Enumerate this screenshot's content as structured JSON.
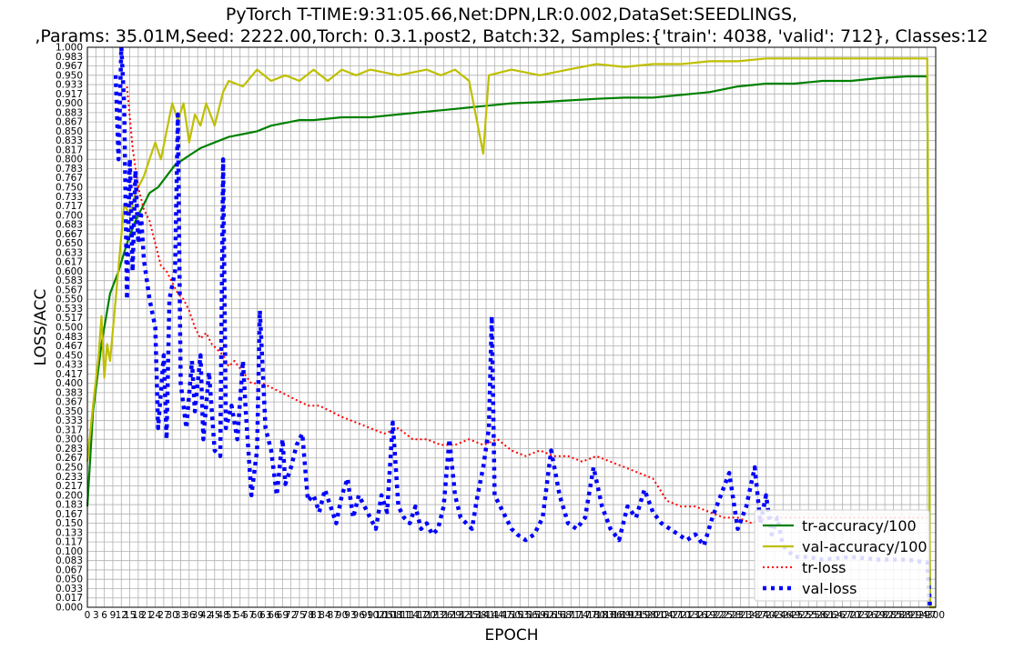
{
  "chart_data": {
    "type": "line",
    "title_line1": "PyTorch T-TIME:9:31:05.66,Net:DPN,LR:0.002,DataSet:SEEDLINGS,",
    "title_line2": ",Params: 35.01M,Seed: 2222.00,Torch: 0.3.1.post2, Batch:32, Samples:{'train': 4038, 'valid': 712}, Classes:12",
    "xlabel": "EPOCH",
    "ylabel": "LOSS/ACC",
    "xlim": [
      0,
      300
    ],
    "ylim": [
      0,
      1
    ],
    "y_tick_step": 0.01667,
    "grid": true,
    "legend_position": "lower-right",
    "series": [
      {
        "name": "tr-accuracy/100",
        "color": "#008000",
        "style": "solid",
        "points": [
          [
            0,
            0.18
          ],
          [
            2,
            0.35
          ],
          [
            5,
            0.47
          ],
          [
            8,
            0.56
          ],
          [
            11,
            0.6
          ],
          [
            14,
            0.65
          ],
          [
            17,
            0.69
          ],
          [
            20,
            0.72
          ],
          [
            22,
            0.74
          ],
          [
            25,
            0.75
          ],
          [
            28,
            0.77
          ],
          [
            31,
            0.79
          ],
          [
            34,
            0.8
          ],
          [
            37,
            0.81
          ],
          [
            40,
            0.82
          ],
          [
            45,
            0.83
          ],
          [
            50,
            0.84
          ],
          [
            55,
            0.845
          ],
          [
            60,
            0.85
          ],
          [
            65,
            0.86
          ],
          [
            70,
            0.865
          ],
          [
            75,
            0.87
          ],
          [
            80,
            0.87
          ],
          [
            90,
            0.875
          ],
          [
            100,
            0.875
          ],
          [
            110,
            0.88
          ],
          [
            120,
            0.885
          ],
          [
            130,
            0.89
          ],
          [
            140,
            0.895
          ],
          [
            150,
            0.9
          ],
          [
            160,
            0.902
          ],
          [
            170,
            0.905
          ],
          [
            180,
            0.908
          ],
          [
            190,
            0.91
          ],
          [
            200,
            0.91
          ],
          [
            210,
            0.915
          ],
          [
            220,
            0.92
          ],
          [
            230,
            0.93
          ],
          [
            240,
            0.935
          ],
          [
            250,
            0.935
          ],
          [
            260,
            0.94
          ],
          [
            270,
            0.94
          ],
          [
            280,
            0.945
          ],
          [
            290,
            0.948
          ],
          [
            297,
            0.948
          ],
          [
            298,
            0.0
          ],
          [
            300,
            0.0
          ]
        ]
      },
      {
        "name": "val-accuracy/100",
        "color": "#bfbf00",
        "style": "solid",
        "points": [
          [
            0,
            0.26
          ],
          [
            2,
            0.36
          ],
          [
            4,
            0.45
          ],
          [
            5,
            0.52
          ],
          [
            6,
            0.41
          ],
          [
            7,
            0.47
          ],
          [
            8,
            0.44
          ],
          [
            10,
            0.55
          ],
          [
            13,
            0.72
          ],
          [
            15,
            0.7
          ],
          [
            17,
            0.74
          ],
          [
            20,
            0.77
          ],
          [
            22,
            0.8
          ],
          [
            24,
            0.83
          ],
          [
            26,
            0.8
          ],
          [
            28,
            0.85
          ],
          [
            30,
            0.9
          ],
          [
            32,
            0.87
          ],
          [
            34,
            0.9
          ],
          [
            36,
            0.83
          ],
          [
            38,
            0.88
          ],
          [
            40,
            0.86
          ],
          [
            42,
            0.9
          ],
          [
            45,
            0.86
          ],
          [
            48,
            0.92
          ],
          [
            50,
            0.94
          ],
          [
            55,
            0.93
          ],
          [
            60,
            0.96
          ],
          [
            65,
            0.94
          ],
          [
            70,
            0.95
          ],
          [
            75,
            0.94
          ],
          [
            80,
            0.96
          ],
          [
            85,
            0.94
          ],
          [
            90,
            0.96
          ],
          [
            95,
            0.95
          ],
          [
            100,
            0.96
          ],
          [
            110,
            0.95
          ],
          [
            120,
            0.96
          ],
          [
            125,
            0.95
          ],
          [
            130,
            0.96
          ],
          [
            135,
            0.94
          ],
          [
            140,
            0.81
          ],
          [
            142,
            0.95
          ],
          [
            150,
            0.96
          ],
          [
            160,
            0.95
          ],
          [
            170,
            0.96
          ],
          [
            180,
            0.97
          ],
          [
            190,
            0.965
          ],
          [
            200,
            0.97
          ],
          [
            210,
            0.97
          ],
          [
            220,
            0.975
          ],
          [
            230,
            0.975
          ],
          [
            240,
            0.98
          ],
          [
            250,
            0.98
          ],
          [
            260,
            0.98
          ],
          [
            270,
            0.98
          ],
          [
            280,
            0.98
          ],
          [
            290,
            0.98
          ],
          [
            297,
            0.98
          ],
          [
            298,
            0.0
          ],
          [
            300,
            0.0
          ]
        ]
      },
      {
        "name": "tr-loss",
        "color": "#ff0000",
        "style": "dotted",
        "points": [
          [
            14,
            0.93
          ],
          [
            16,
            0.82
          ],
          [
            18,
            0.75
          ],
          [
            20,
            0.71
          ],
          [
            22,
            0.69
          ],
          [
            24,
            0.65
          ],
          [
            26,
            0.61
          ],
          [
            28,
            0.6
          ],
          [
            30,
            0.58
          ],
          [
            32,
            0.56
          ],
          [
            34,
            0.55
          ],
          [
            36,
            0.53
          ],
          [
            38,
            0.5
          ],
          [
            40,
            0.48
          ],
          [
            42,
            0.49
          ],
          [
            44,
            0.47
          ],
          [
            46,
            0.46
          ],
          [
            48,
            0.45
          ],
          [
            50,
            0.43
          ],
          [
            52,
            0.44
          ],
          [
            55,
            0.42
          ],
          [
            58,
            0.4
          ],
          [
            62,
            0.4
          ],
          [
            66,
            0.39
          ],
          [
            70,
            0.38
          ],
          [
            74,
            0.37
          ],
          [
            78,
            0.36
          ],
          [
            82,
            0.36
          ],
          [
            86,
            0.35
          ],
          [
            90,
            0.34
          ],
          [
            95,
            0.33
          ],
          [
            100,
            0.32
          ],
          [
            105,
            0.31
          ],
          [
            110,
            0.32
          ],
          [
            115,
            0.3
          ],
          [
            120,
            0.3
          ],
          [
            125,
            0.29
          ],
          [
            130,
            0.29
          ],
          [
            135,
            0.3
          ],
          [
            140,
            0.29
          ],
          [
            145,
            0.3
          ],
          [
            150,
            0.28
          ],
          [
            155,
            0.27
          ],
          [
            160,
            0.28
          ],
          [
            165,
            0.27
          ],
          [
            170,
            0.27
          ],
          [
            175,
            0.26
          ],
          [
            180,
            0.27
          ],
          [
            185,
            0.26
          ],
          [
            190,
            0.25
          ],
          [
            195,
            0.24
          ],
          [
            200,
            0.23
          ],
          [
            205,
            0.19
          ],
          [
            210,
            0.18
          ],
          [
            215,
            0.18
          ],
          [
            220,
            0.17
          ],
          [
            225,
            0.16
          ],
          [
            230,
            0.16
          ],
          [
            235,
            0.15
          ],
          [
            240,
            0.16
          ],
          [
            250,
            0.16
          ],
          [
            260,
            0.16
          ],
          [
            270,
            0.16
          ],
          [
            280,
            0.16
          ],
          [
            290,
            0.16
          ],
          [
            297,
            0.16
          ]
        ]
      },
      {
        "name": "val-loss",
        "color": "#0000ff",
        "style": "dashed",
        "points": [
          [
            10,
            0.95
          ],
          [
            11,
            0.8
          ],
          [
            12,
            1.0
          ],
          [
            13,
            0.9
          ],
          [
            14,
            0.55
          ],
          [
            15,
            0.8
          ],
          [
            16,
            0.6
          ],
          [
            17,
            0.78
          ],
          [
            18,
            0.65
          ],
          [
            19,
            0.7
          ],
          [
            20,
            0.62
          ],
          [
            22,
            0.55
          ],
          [
            24,
            0.5
          ],
          [
            25,
            0.32
          ],
          [
            27,
            0.45
          ],
          [
            28,
            0.3
          ],
          [
            29,
            0.55
          ],
          [
            31,
            0.6
          ],
          [
            32,
            0.88
          ],
          [
            33,
            0.4
          ],
          [
            35,
            0.32
          ],
          [
            37,
            0.44
          ],
          [
            38,
            0.35
          ],
          [
            40,
            0.45
          ],
          [
            41,
            0.3
          ],
          [
            43,
            0.42
          ],
          [
            45,
            0.28
          ],
          [
            47,
            0.27
          ],
          [
            48,
            0.8
          ],
          [
            49,
            0.32
          ],
          [
            51,
            0.36
          ],
          [
            53,
            0.3
          ],
          [
            55,
            0.44
          ],
          [
            56,
            0.35
          ],
          [
            58,
            0.2
          ],
          [
            60,
            0.28
          ],
          [
            61,
            0.53
          ],
          [
            63,
            0.32
          ],
          [
            65,
            0.28
          ],
          [
            67,
            0.2
          ],
          [
            69,
            0.3
          ],
          [
            70,
            0.22
          ],
          [
            72,
            0.25
          ],
          [
            74,
            0.29
          ],
          [
            76,
            0.31
          ],
          [
            78,
            0.19
          ],
          [
            80,
            0.2
          ],
          [
            82,
            0.17
          ],
          [
            84,
            0.21
          ],
          [
            86,
            0.18
          ],
          [
            88,
            0.15
          ],
          [
            90,
            0.2
          ],
          [
            92,
            0.23
          ],
          [
            94,
            0.16
          ],
          [
            96,
            0.2
          ],
          [
            98,
            0.18
          ],
          [
            100,
            0.16
          ],
          [
            102,
            0.14
          ],
          [
            104,
            0.2
          ],
          [
            106,
            0.17
          ],
          [
            108,
            0.33
          ],
          [
            110,
            0.18
          ],
          [
            112,
            0.16
          ],
          [
            114,
            0.15
          ],
          [
            116,
            0.18
          ],
          [
            118,
            0.14
          ],
          [
            120,
            0.15
          ],
          [
            122,
            0.13
          ],
          [
            124,
            0.14
          ],
          [
            126,
            0.18
          ],
          [
            128,
            0.3
          ],
          [
            130,
            0.2
          ],
          [
            132,
            0.16
          ],
          [
            134,
            0.15
          ],
          [
            136,
            0.14
          ],
          [
            138,
            0.2
          ],
          [
            140,
            0.25
          ],
          [
            142,
            0.32
          ],
          [
            143,
            0.52
          ],
          [
            144,
            0.2
          ],
          [
            146,
            0.18
          ],
          [
            148,
            0.16
          ],
          [
            150,
            0.14
          ],
          [
            152,
            0.13
          ],
          [
            155,
            0.12
          ],
          [
            158,
            0.13
          ],
          [
            161,
            0.16
          ],
          [
            164,
            0.28
          ],
          [
            167,
            0.2
          ],
          [
            170,
            0.15
          ],
          [
            173,
            0.14
          ],
          [
            176,
            0.16
          ],
          [
            179,
            0.25
          ],
          [
            182,
            0.18
          ],
          [
            185,
            0.14
          ],
          [
            188,
            0.12
          ],
          [
            191,
            0.18
          ],
          [
            194,
            0.16
          ],
          [
            197,
            0.21
          ],
          [
            200,
            0.17
          ],
          [
            203,
            0.15
          ],
          [
            206,
            0.14
          ],
          [
            209,
            0.13
          ],
          [
            212,
            0.12
          ],
          [
            215,
            0.13
          ],
          [
            218,
            0.11
          ],
          [
            221,
            0.16
          ],
          [
            224,
            0.2
          ],
          [
            227,
            0.24
          ],
          [
            230,
            0.14
          ],
          [
            233,
            0.18
          ],
          [
            236,
            0.25
          ],
          [
            238,
            0.15
          ],
          [
            240,
            0.2
          ],
          [
            242,
            0.13
          ],
          [
            244,
            0.16
          ],
          [
            246,
            0.11
          ],
          [
            248,
            0.1
          ],
          [
            250,
            0.09
          ],
          [
            255,
            0.09
          ],
          [
            260,
            0.085
          ],
          [
            270,
            0.09
          ],
          [
            280,
            0.085
          ],
          [
            290,
            0.085
          ],
          [
            297,
            0.08
          ],
          [
            298,
            0.0
          ]
        ]
      }
    ]
  }
}
